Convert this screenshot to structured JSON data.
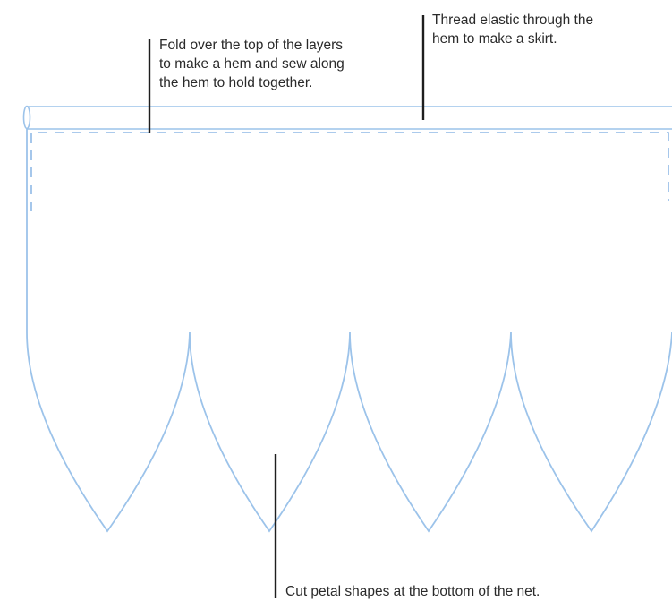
{
  "callouts": {
    "hem": "Fold over the top of the layers\nto make a hem and sew along\nthe hem to hold together.",
    "elastic": "Thread elastic through the\nhem to make a skirt.",
    "petal": "Cut petal shapes at the bottom of the net."
  },
  "colors": {
    "outline": "#9cc3ea",
    "stitch": "#8fb9e6",
    "leader": "#1e1e1e",
    "text": "#2a2a2a"
  }
}
